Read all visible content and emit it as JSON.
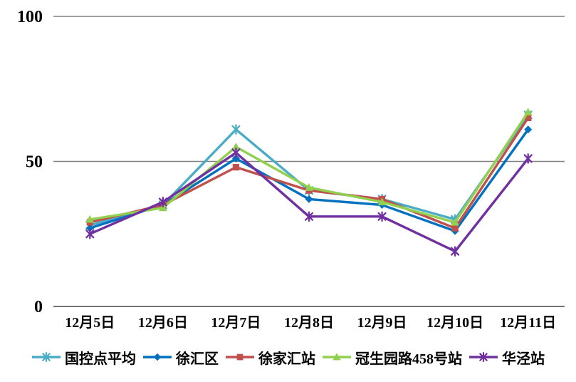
{
  "chart_data": {
    "type": "line",
    "title": "",
    "xlabel": "",
    "ylabel": "",
    "categories": [
      "12月5日",
      "12月6日",
      "12月7日",
      "12月8日",
      "12月9日",
      "12月10日",
      "12月11日"
    ],
    "series": [
      {
        "name": "国控点平均",
        "color": "#4BACC6",
        "marker": "asterisk",
        "values": [
          28,
          35,
          61,
          40,
          37,
          30,
          66
        ]
      },
      {
        "name": "徐汇区",
        "color": "#0070C0",
        "marker": "diamond",
        "values": [
          27,
          35,
          51,
          37,
          35,
          26,
          61
        ]
      },
      {
        "name": "徐家汇站",
        "color": "#C0504D",
        "marker": "square",
        "values": [
          29,
          35,
          48,
          40,
          37,
          27,
          65
        ]
      },
      {
        "name": "冠生园路458号站",
        "color": "#92D050",
        "marker": "triangle",
        "values": [
          30,
          34,
          55,
          41,
          36,
          29,
          67
        ]
      },
      {
        "name": "华泾站",
        "color": "#7030A0",
        "marker": "asterisk",
        "values": [
          25,
          36,
          53,
          31,
          31,
          19,
          51
        ]
      }
    ],
    "ylim": [
      0,
      100
    ],
    "yticks": [
      0,
      50,
      100
    ],
    "grid": true,
    "legend_position": "bottom",
    "gridline_color": "#808080",
    "axis_line_color": "#737373",
    "text_color": "#000000"
  }
}
